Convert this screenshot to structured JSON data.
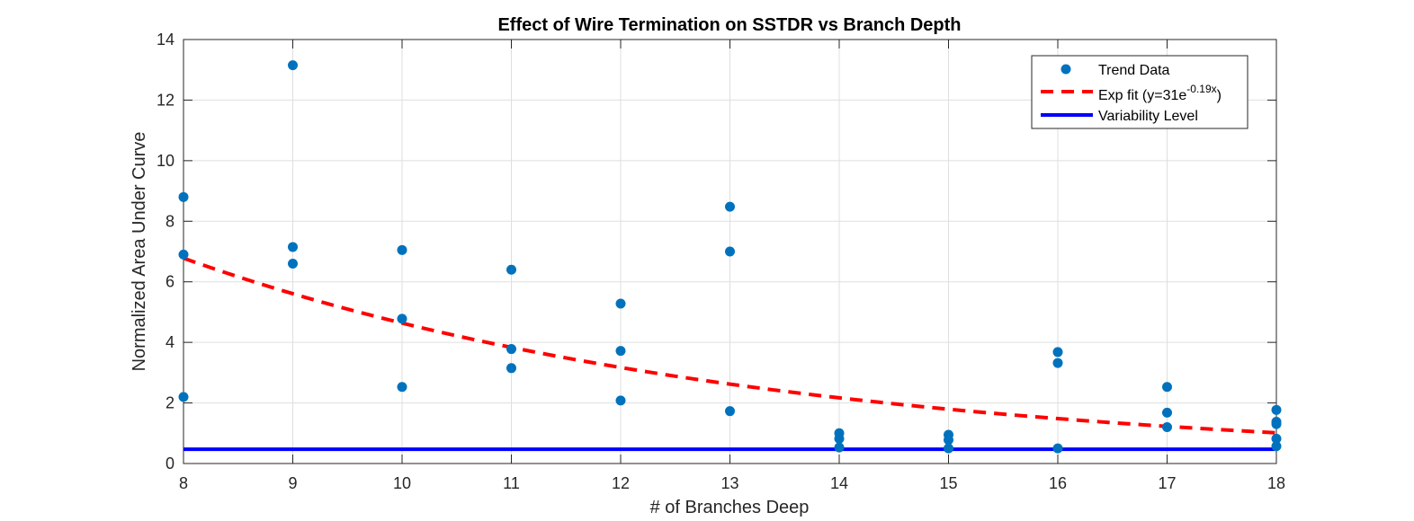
{
  "chart_data": {
    "type": "scatter",
    "title": "Effect of Wire Termination on SSTDR vs Branch Depth",
    "xlabel": "# of Branches Deep",
    "ylabel": "Normalized Area Under Curve",
    "xlim": [
      8,
      18
    ],
    "ylim": [
      0,
      14
    ],
    "xticks": [
      8,
      9,
      10,
      11,
      12,
      13,
      14,
      15,
      16,
      17,
      18
    ],
    "yticks": [
      0,
      2,
      4,
      6,
      8,
      10,
      12,
      14
    ],
    "grid": true,
    "legend_position": "top-right",
    "series": [
      {
        "name": "Trend Data",
        "kind": "scatter",
        "color": "#0072BD",
        "points": [
          [
            8,
            8.8
          ],
          [
            8,
            6.9
          ],
          [
            8,
            2.2
          ],
          [
            9,
            13.15
          ],
          [
            9,
            7.15
          ],
          [
            9,
            6.6
          ],
          [
            10,
            7.05
          ],
          [
            10,
            4.78
          ],
          [
            10,
            2.53
          ],
          [
            11,
            6.4
          ],
          [
            11,
            3.78
          ],
          [
            11,
            3.15
          ],
          [
            12,
            5.28
          ],
          [
            12,
            3.72
          ],
          [
            12,
            2.08
          ],
          [
            13,
            8.48
          ],
          [
            13,
            7.0
          ],
          [
            13,
            1.73
          ],
          [
            14,
            1.0
          ],
          [
            14,
            0.82
          ],
          [
            14,
            0.53
          ],
          [
            15,
            0.95
          ],
          [
            15,
            0.78
          ],
          [
            15,
            0.5
          ],
          [
            16,
            3.68
          ],
          [
            16,
            3.32
          ],
          [
            16,
            0.5
          ],
          [
            17,
            2.53
          ],
          [
            17,
            1.68
          ],
          [
            17,
            1.2
          ],
          [
            18,
            1.77
          ],
          [
            18,
            1.38
          ],
          [
            18,
            1.3
          ],
          [
            18,
            0.82
          ],
          [
            18,
            0.57
          ]
        ]
      },
      {
        "name_prefix": "Exp fit (y=31e",
        "name_exponent": "-0.19x",
        "name_suffix": ")",
        "kind": "curve",
        "color": "#FF0000",
        "dash": true,
        "formula": {
          "a": 31,
          "b": -0.19
        }
      },
      {
        "name": "Variability Level",
        "kind": "hline",
        "color": "#0000FF",
        "y": 0.47
      }
    ]
  }
}
